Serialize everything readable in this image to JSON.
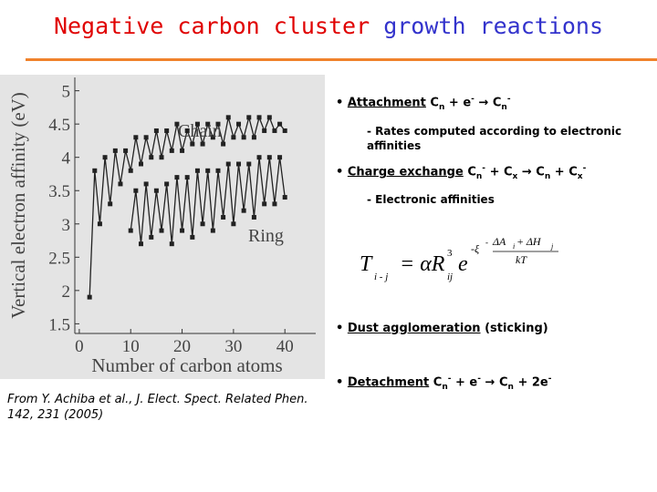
{
  "slide": {
    "title_part1": "Negative carbon cluster",
    "title_part2": "growth reactions",
    "citation": "From Y. Achiba et al., J. Elect. Spect. Related Phen. 142, 231 (2005)",
    "bullets": [
      {
        "term": "Attachment",
        "pieces": [
          {
            "t": " C"
          },
          {
            "t": "n",
            "s": "sub"
          },
          {
            "t": " + e"
          },
          {
            "t": "-",
            "s": "sup"
          },
          {
            "t": " → C"
          },
          {
            "t": "n",
            "s": "sub"
          },
          {
            "t": "-",
            "s": "sup"
          }
        ],
        "sub": "- Rates computed according to electronic affinities"
      },
      {
        "term": "Charge exchange",
        "pieces": [
          {
            "t": " C"
          },
          {
            "t": "n",
            "s": "sub"
          },
          {
            "t": "-",
            "s": "sup"
          },
          {
            "t": " + C"
          },
          {
            "t": "x",
            "s": "sub"
          },
          {
            "t": " → C"
          },
          {
            "t": "n",
            "s": "sub"
          },
          {
            "t": " + C"
          },
          {
            "t": "x",
            "s": "sub"
          },
          {
            "t": "-",
            "s": "sup"
          }
        ],
        "sub": "- Electronic affinities"
      },
      {
        "term": "Dust agglomeration",
        "pieces": [
          {
            "t": " (sticking)"
          }
        ]
      },
      {
        "term": "Detachment",
        "pieces": [
          {
            "t": " C"
          },
          {
            "t": "n",
            "s": "sub"
          },
          {
            "t": "-",
            "s": "sup"
          },
          {
            "t": " + e"
          },
          {
            "t": "-",
            "s": "sup"
          },
          {
            "t": " → C"
          },
          {
            "t": "n",
            "s": "sub"
          },
          {
            "t": " + 2e"
          },
          {
            "t": "-",
            "s": "sup"
          }
        ]
      }
    ],
    "equation": {
      "lhs": "T",
      "lhs_sub": "i - j",
      "eq": "= αR",
      "r_sub": "ij",
      "r_sup": "3",
      "e": "e",
      "exp_lead": "-ξ",
      "exp_sup": "-",
      "numerator": "ΔA",
      "num_i": "i",
      "num_plus": " + ΔH",
      "num_j": "j",
      "denominator": "kT"
    }
  },
  "chart_data": {
    "type": "line",
    "xlabel": "Number of carbon atoms",
    "ylabel": "Vertical electron affinity (eV)",
    "x": [
      2,
      3,
      4,
      5,
      6,
      7,
      8,
      9,
      10,
      11,
      12,
      13,
      14,
      15,
      16,
      17,
      18,
      19,
      20,
      21,
      22,
      23,
      24,
      25,
      26,
      27,
      28,
      29,
      30,
      31,
      32,
      33,
      34,
      35,
      36,
      37,
      38,
      39,
      40
    ],
    "series": [
      {
        "name": "Chain",
        "color": "#222222",
        "values": [
          1.9,
          3.8,
          3.0,
          4.0,
          3.3,
          4.1,
          3.6,
          4.1,
          3.8,
          4.3,
          3.9,
          4.3,
          4.0,
          4.4,
          4.0,
          4.4,
          4.1,
          4.5,
          4.1,
          4.4,
          4.2,
          4.5,
          4.2,
          4.5,
          4.3,
          4.5,
          4.2,
          4.6,
          4.3,
          4.5,
          4.3,
          4.6,
          4.3,
          4.6,
          4.4,
          4.6,
          4.4,
          4.5,
          4.4
        ]
      },
      {
        "name": "Ring",
        "color": "#222222",
        "values": [
          null,
          null,
          null,
          null,
          null,
          null,
          null,
          null,
          2.9,
          3.5,
          2.7,
          3.6,
          2.8,
          3.5,
          2.9,
          3.6,
          2.7,
          3.7,
          2.9,
          3.7,
          2.8,
          3.8,
          3.0,
          3.8,
          2.9,
          3.8,
          3.1,
          3.9,
          3.0,
          3.9,
          3.2,
          3.9,
          3.1,
          4.0,
          3.3,
          4.0,
          3.3,
          4.0,
          3.4
        ]
      }
    ],
    "xlim": [
      -3,
      46
    ],
    "ylim": [
      1.3,
      5.2
    ],
    "xticks": [
      0,
      10,
      20,
      30,
      40
    ],
    "yticks": [
      1.5,
      2,
      2.5,
      3,
      3.5,
      4,
      4.5,
      5
    ]
  }
}
